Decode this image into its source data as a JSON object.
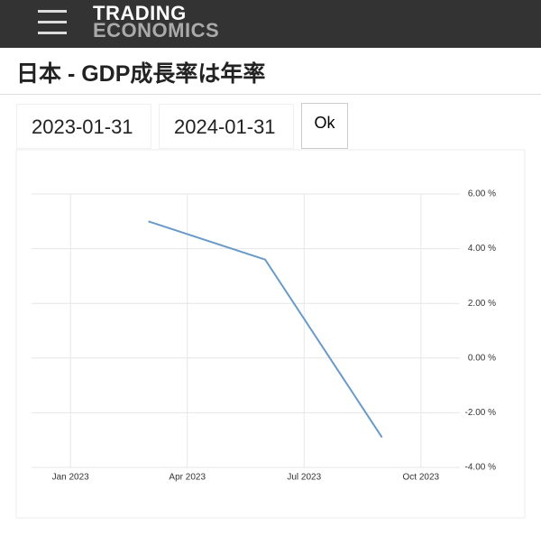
{
  "header": {
    "logo_top": "TRADING",
    "logo_bottom": "ECONOMICS"
  },
  "page_title": "日本 - GDP成長率は年率",
  "form": {
    "start_date": "2023-01-31",
    "end_date": "2024-01-31",
    "button": "Ok"
  },
  "chart_data": {
    "type": "line",
    "x": [
      "2023-03",
      "2023-06",
      "2023-09"
    ],
    "values": [
      5.0,
      3.6,
      -2.9
    ],
    "color": "#6a9bc8",
    "xlim": [
      "2022-12",
      "2023-11"
    ],
    "xticks": [
      {
        "value": "2023-01",
        "label": "Jan 2023"
      },
      {
        "value": "2023-04",
        "label": "Apr 2023"
      },
      {
        "value": "2023-07",
        "label": "Jul 2023"
      },
      {
        "value": "2023-10",
        "label": "Oct 2023"
      }
    ],
    "ylim": [
      -4,
      6
    ],
    "yticks": [
      {
        "value": -4,
        "label": "-4.00 %"
      },
      {
        "value": -2,
        "label": "-2.00 %"
      },
      {
        "value": 0,
        "label": "0.00 %"
      },
      {
        "value": 2,
        "label": "2.00 %"
      },
      {
        "value": 4,
        "label": "4.00 %"
      },
      {
        "value": 6,
        "label": "6.00 %"
      }
    ],
    "grid": true
  }
}
